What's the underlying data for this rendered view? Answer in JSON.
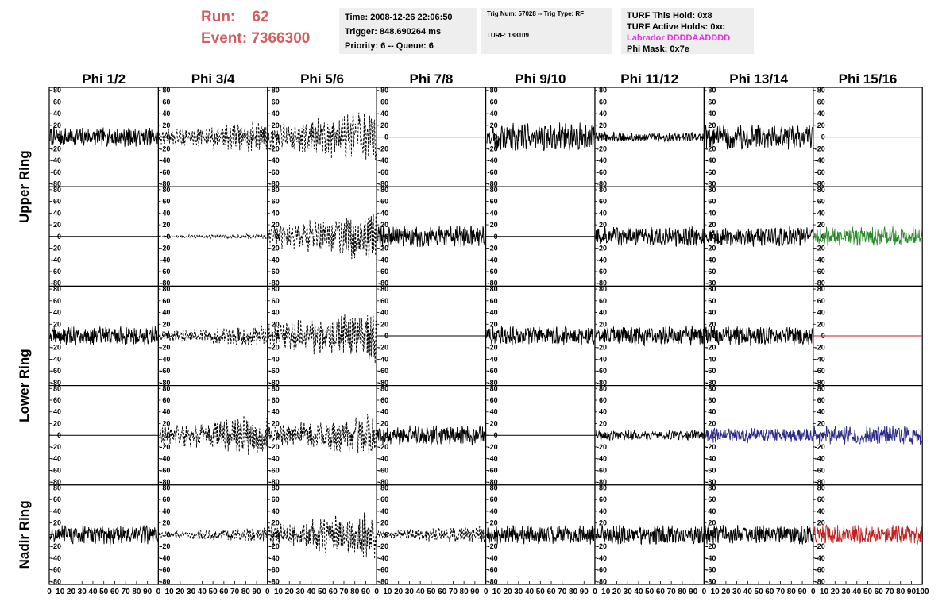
{
  "header": {
    "run_label": "Run:",
    "run_value": "62",
    "event_label": "Event:",
    "event_value": "7366300",
    "time": "Time: 2008-12-26 22:06:50",
    "trigger": "Trigger: 848.690264 ms",
    "priority_queue": "Priority: 6 -- Queue: 6",
    "trig_num_type": "Trig Num: 57028 -- Trig Type: RF",
    "turf": "TURF: 188109",
    "turf_this_hold": "TURF This Hold: 0x8",
    "turf_active_holds": "TURF Active Holds: 0xc",
    "labrador": "Labrador DDDDAADDDD",
    "phi_mask": "Phi Mask: 0x7e"
  },
  "colors": {
    "run_text": "#d15f5f",
    "labrador_text": "#e030e0",
    "trace_default": "#000000",
    "trace_green": "#2a8a2a",
    "trace_blue": "#2a2a8a",
    "trace_red": "#c02020",
    "header_box_bg": "#eeeeee"
  },
  "chart_data": {
    "type": "line",
    "columns": [
      "Phi 1/2",
      "Phi 3/4",
      "Phi 5/6",
      "Phi 7/8",
      "Phi 9/10",
      "Phi 11/12",
      "Phi 13/14",
      "Phi 15/16"
    ],
    "ring_labels": [
      "Upper Ring",
      "Lower Ring",
      "Nadir Ring"
    ],
    "ylim": [
      -85,
      85
    ],
    "xlim": [
      0,
      100
    ],
    "ytick_labels": [
      "80",
      "60",
      "40",
      "20",
      "0",
      "-20",
      "-40",
      "-60",
      "-80"
    ],
    "xtick_labels": [
      "0",
      "10",
      "20",
      "30",
      "40",
      "50",
      "60",
      "70",
      "80",
      "90",
      "100"
    ],
    "panels": [
      [
        "s:14",
        "d:18",
        "d:30",
        "flat",
        "s:20",
        "s:7",
        "s:18",
        "flat-red"
      ],
      [
        "flat",
        "d:3",
        "d:28",
        "s:16",
        "flat",
        "s:14",
        "s:14",
        "green:14"
      ],
      [
        "s:14",
        "d:12",
        "d:30",
        "flat",
        "s:14",
        "s:14",
        "s:14",
        "flat-red"
      ],
      [
        "flat",
        "d:24",
        "d:24",
        "s:14",
        "flat",
        "s:7",
        "blue:11",
        "blue:14"
      ],
      [
        "s:14",
        "d:8",
        "d:28",
        "d:10",
        "s:14",
        "s:14",
        "s:14",
        "red:14"
      ]
    ]
  }
}
